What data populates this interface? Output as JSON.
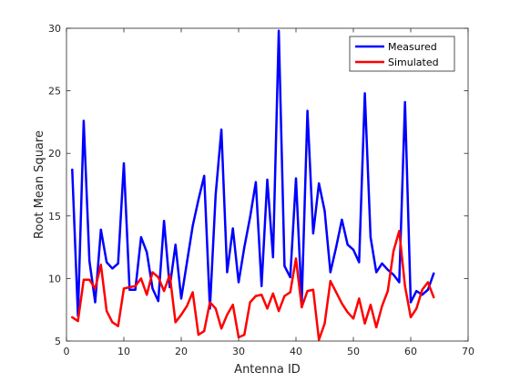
{
  "chart_data": {
    "type": "line",
    "xlabel": "Antenna ID",
    "ylabel": "Root Mean Square",
    "xlim": [
      0,
      70
    ],
    "ylim": [
      5,
      30
    ],
    "xticks": [
      0,
      10,
      20,
      30,
      40,
      50,
      60,
      70
    ],
    "yticks": [
      5,
      10,
      15,
      20,
      25,
      30
    ],
    "xtick_labels": [
      "0",
      "10",
      "20",
      "30",
      "40",
      "50",
      "60",
      "70"
    ],
    "ytick_labels": [
      "5",
      "10",
      "15",
      "20",
      "25",
      "30"
    ],
    "grid": false,
    "legend_position": "top-right",
    "x": [
      1,
      2,
      3,
      4,
      5,
      6,
      7,
      8,
      9,
      10,
      11,
      12,
      13,
      14,
      15,
      16,
      17,
      18,
      19,
      20,
      21,
      22,
      23,
      24,
      25,
      26,
      27,
      28,
      29,
      30,
      31,
      32,
      33,
      34,
      35,
      36,
      37,
      38,
      39,
      40,
      41,
      42,
      43,
      44,
      45,
      46,
      47,
      48,
      49,
      50,
      51,
      52,
      53,
      54,
      55,
      56,
      57,
      58,
      59,
      60,
      61,
      62,
      63,
      64
    ],
    "series": [
      {
        "name": "Measured",
        "color": "#0000ff",
        "values": [
          18.7,
          7.0,
          22.6,
          11.4,
          8.1,
          13.9,
          11.3,
          10.8,
          11.2,
          19.2,
          9.1,
          9.1,
          13.3,
          12.1,
          9.2,
          8.2,
          14.6,
          9.3,
          12.7,
          8.4,
          11.3,
          14.2,
          16.3,
          18.2,
          7.6,
          16.7,
          21.9,
          10.5,
          14.0,
          9.7,
          12.5,
          14.9,
          17.7,
          9.4,
          17.9,
          11.7,
          29.8,
          11.0,
          10.1,
          18.0,
          8.1,
          23.4,
          13.6,
          17.6,
          15.4,
          10.5,
          12.5,
          14.7,
          12.7,
          12.3,
          11.3,
          24.8,
          13.3,
          10.5,
          11.2,
          10.7,
          10.3,
          9.7,
          24.1,
          8.1,
          9.0,
          8.7,
          9.1,
          10.4
        ]
      },
      {
        "name": "Simulated",
        "color": "#ff0000",
        "values": [
          6.9,
          6.6,
          9.9,
          9.9,
          9.2,
          11.1,
          7.4,
          6.5,
          6.2,
          9.2,
          9.3,
          9.4,
          10.0,
          8.7,
          10.5,
          10.1,
          9.0,
          10.3,
          6.5,
          7.1,
          7.8,
          8.9,
          5.5,
          5.8,
          8.1,
          7.6,
          6.0,
          7.1,
          7.9,
          5.3,
          5.5,
          8.1,
          8.6,
          8.7,
          7.6,
          8.8,
          7.4,
          8.6,
          8.9,
          11.6,
          7.7,
          9.0,
          9.1,
          5.1,
          6.4,
          9.8,
          8.9,
          8.0,
          7.3,
          6.8,
          8.4,
          6.4,
          7.9,
          6.1,
          7.8,
          9.0,
          12.2,
          13.8,
          9.4,
          6.9,
          7.6,
          9.1,
          9.7,
          8.5
        ]
      }
    ]
  }
}
